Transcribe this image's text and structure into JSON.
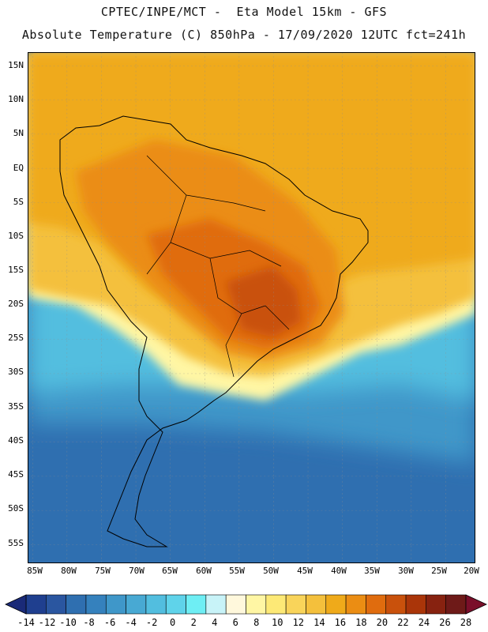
{
  "header": {
    "line1": "CPTEC/INPE/MCT -  Eta Model 15km - GFS",
    "line2": "Absolute Temperature (C) 850hPa - 17/09/2020 12UTC fct=241h"
  },
  "map": {
    "lat_labels": [
      "15N",
      "10N",
      "5N",
      "EQ",
      "5S",
      "10S",
      "15S",
      "20S",
      "25S",
      "30S",
      "35S",
      "40S",
      "45S",
      "50S",
      "55S"
    ],
    "lon_labels": [
      "85W",
      "80W",
      "75W",
      "70W",
      "65W",
      "60W",
      "55W",
      "50W",
      "45W",
      "40W",
      "35W",
      "30W",
      "25W",
      "20W"
    ]
  },
  "colorbar": {
    "labels": [
      "-14",
      "-12",
      "-10",
      "-8",
      "-6",
      "-4",
      "-2",
      "0",
      "2",
      "4",
      "6",
      "8",
      "10",
      "12",
      "14",
      "16",
      "18",
      "20",
      "22",
      "24",
      "26",
      "28"
    ],
    "colors": [
      "#1f3f8f",
      "#2a56a0",
      "#2f6fb0",
      "#3581bd",
      "#3f97c9",
      "#48a9d3",
      "#52bedf",
      "#5fd3ea",
      "#6eeef4",
      "#c8f3f8",
      "#fff8dc",
      "#fff6a4",
      "#fde976",
      "#f9d45a",
      "#f4c03c",
      "#efaa1a",
      "#eb8d13",
      "#e06c0e",
      "#c9510c",
      "#aa3509",
      "#872210",
      "#6e1a18"
    ],
    "min_color": "#1a2a78",
    "max_color": "#7a0f2a"
  }
}
